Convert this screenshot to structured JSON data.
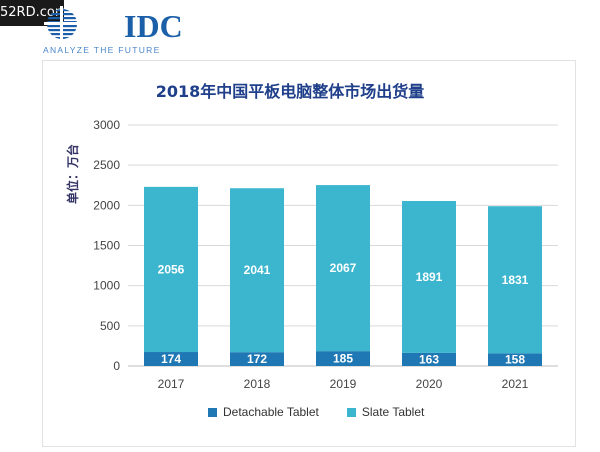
{
  "watermark": "52RD.com",
  "logo": {
    "name": "IDC",
    "tagline": "ANALYZE THE FUTURE"
  },
  "colors": {
    "detachable": "#1f78b4",
    "slate": "#3cb6cf",
    "grid": "#d9d9d9",
    "axis_text": "#444444",
    "title": "#1f3f8a"
  },
  "chart_data": {
    "type": "bar",
    "stacked": true,
    "title": "2018年中国平板电脑整体市场出货量",
    "ylabel": "单位：万台",
    "xlabel": "",
    "categories": [
      "2017",
      "2018",
      "2019",
      "2020",
      "2021"
    ],
    "ylim": [
      0,
      3000
    ],
    "yticks": [
      0,
      500,
      1000,
      1500,
      2000,
      2500,
      3000
    ],
    "grid": true,
    "legend_position": "bottom",
    "series": [
      {
        "name": "Detachable Tablet",
        "values": [
          174,
          172,
          185,
          163,
          158
        ],
        "color": "#1f78b4"
      },
      {
        "name": "Slate Tablet",
        "values": [
          2056,
          2041,
          2067,
          1891,
          1831
        ],
        "color": "#3cb6cf"
      }
    ]
  }
}
